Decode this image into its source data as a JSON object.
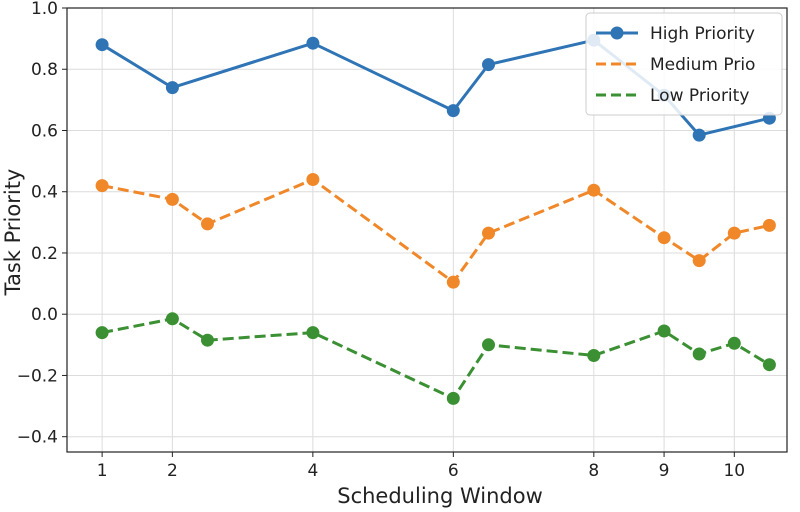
{
  "chart_data": {
    "type": "line",
    "title": "",
    "xlabel": "Scheduling Window",
    "ylabel": "Task Priority",
    "xticks": [
      1,
      2,
      4,
      6,
      8,
      9,
      10
    ],
    "xlim": [
      0.5,
      10.75
    ],
    "ylim": [
      -0.45,
      1.0
    ],
    "yticks": [
      -0.4,
      -0.2,
      0.0,
      0.2,
      0.4,
      0.6,
      0.8,
      1.0
    ],
    "ytick_labels": [
      "−0.4",
      "−0.2",
      "0.0",
      "0.2",
      "0.4",
      "0.6",
      "0.8",
      "1.0"
    ],
    "grid": true,
    "legend_position": "top-right",
    "series": [
      {
        "name": "High Priority",
        "color": "#2f74b5",
        "dash": "solid",
        "points": [
          [
            1,
            0.88
          ],
          [
            2,
            0.74
          ],
          [
            4,
            0.885
          ],
          [
            6,
            0.665
          ],
          [
            6.5,
            0.815
          ],
          [
            8,
            0.895
          ],
          [
            9,
            0.715
          ],
          [
            9.5,
            0.585
          ],
          [
            10.5,
            0.64
          ]
        ]
      },
      {
        "name": "Medium Prio",
        "color": "#f0882a",
        "dash": "dashed",
        "points": [
          [
            1,
            0.42
          ],
          [
            2,
            0.375
          ],
          [
            2.5,
            0.295
          ],
          [
            4,
            0.44
          ],
          [
            6,
            0.105
          ],
          [
            6.5,
            0.265
          ],
          [
            8,
            0.405
          ],
          [
            9,
            0.25
          ],
          [
            9.5,
            0.175
          ],
          [
            10,
            0.265
          ],
          [
            10.5,
            0.29
          ]
        ]
      },
      {
        "name": "Low Priority",
        "color": "#3a9032",
        "dash": "dashed",
        "points": [
          [
            1,
            -0.06
          ],
          [
            2,
            -0.015
          ],
          [
            2.5,
            -0.085
          ],
          [
            4,
            -0.06
          ],
          [
            6,
            -0.275
          ],
          [
            6.5,
            -0.1
          ],
          [
            8,
            -0.135
          ],
          [
            9,
            -0.055
          ],
          [
            9.5,
            -0.13
          ],
          [
            10,
            -0.095
          ],
          [
            10.5,
            -0.165
          ]
        ]
      }
    ]
  }
}
